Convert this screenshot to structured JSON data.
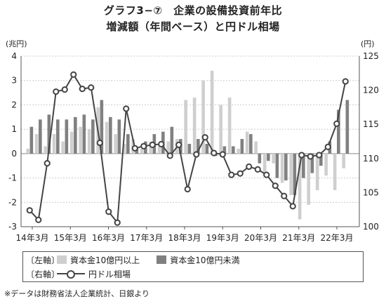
{
  "title": {
    "line1": "グラフ3−⑦　企業の設備投資前年比",
    "line2": "増減額（年間ベース）と円ドル相場"
  },
  "colors": {
    "large": "#cfcfcf",
    "small": "#808080",
    "line": "#444444",
    "grid": "#cccccc"
  },
  "legend": {
    "left_axis": "〔左軸〕",
    "right_axis": "〔右軸〕",
    "large_label": "資本金10億円以上",
    "small_label": "資本金10億円未満",
    "line_label": "円ドル相場"
  },
  "source": "※データは財務省法人企業統計、日銀より",
  "chart_data": {
    "type": "bar",
    "left_unit": "(兆円)",
    "right_unit": "(円)",
    "yleft_lim": [
      -3,
      4
    ],
    "yleft_ticks": [
      4,
      3,
      2,
      1,
      0,
      -1,
      -2,
      -3
    ],
    "yright_lim": [
      100,
      125
    ],
    "yright_ticks": [
      125,
      120,
      115,
      110,
      105,
      100
    ],
    "x_ticks": [
      "14年3月",
      "15年3月",
      "16年3月",
      "17年3月",
      "18年3月",
      "19年3月",
      "20年3月",
      "21年3月",
      "22年3月"
    ],
    "grid": "horizontal dotted",
    "series": [
      {
        "name": "資本金10億円以上",
        "kind": "bar",
        "values": [
          0.2,
          0.8,
          0.3,
          0.8,
          0.5,
          0.9,
          1.1,
          1.0,
          1.9,
          1.3,
          0.8,
          0.4,
          0.6,
          0.2,
          0.5,
          0.3,
          0.5,
          0.6,
          2.2,
          2.3,
          3.0,
          3.4,
          2.0,
          2.3,
          0.2,
          0.9,
          0.5,
          -0.8,
          -0.4,
          -1.2,
          -1.7,
          -2.7,
          -2.1,
          -1.5,
          -0.9,
          -1.5,
          -0.6
        ]
      },
      {
        "name": "資本金10億円未満",
        "kind": "bar",
        "values": [
          1.1,
          1.4,
          1.6,
          1.4,
          1.4,
          1.5,
          1.6,
          1.4,
          2.2,
          1.5,
          1.4,
          0.8,
          0.2,
          0.5,
          0.8,
          0.9,
          1.1,
          0.6,
          0.4,
          0.6,
          0.4,
          -0.1,
          0.3,
          0.3,
          0.6,
          0.8,
          -0.4,
          -0.3,
          -1.0,
          -1.1,
          -1.7,
          -1.0,
          -0.8,
          -0.5,
          0.5,
          1.8,
          2.2
        ]
      },
      {
        "name": "円ドル相場",
        "kind": "line",
        "values": [
          102.4,
          101.0,
          109.3,
          119.8,
          120.1,
          122.3,
          120.2,
          120.4,
          112.3,
          102.2,
          100.6,
          117.3,
          111.5,
          111.8,
          112.0,
          112.1,
          110.4,
          112.0,
          105.5,
          110.6,
          113.1,
          110.8,
          110.6,
          107.6,
          107.8,
          108.8,
          108.4,
          107.6,
          106.0,
          104.5,
          103.0,
          110.5,
          110.3,
          110.5,
          111.7,
          115.1,
          121.3
        ]
      }
    ]
  }
}
